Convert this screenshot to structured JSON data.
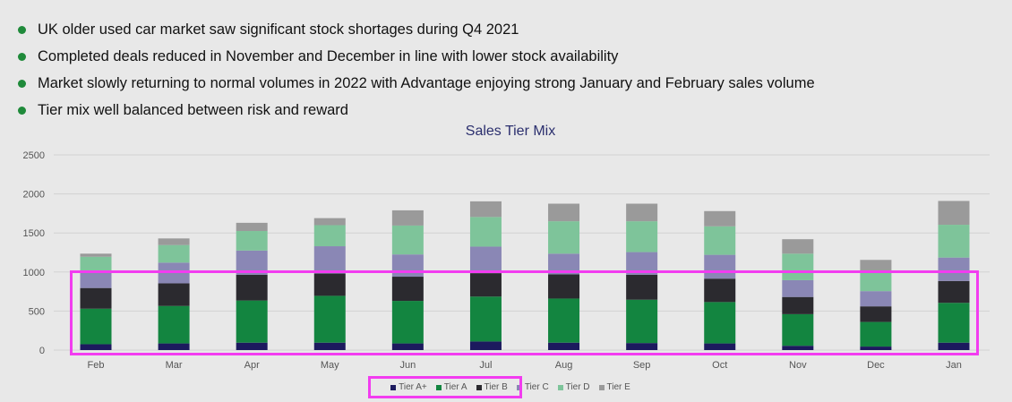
{
  "bullets": {
    "color": "#1f8a3a",
    "items": [
      "UK older used car market saw significant stock shortages during Q4 2021",
      "Completed deals reduced in November and December in line with lower stock availability",
      "Market slowly returning to normal volumes in 2022 with Advantage enjoying strong January and February sales volume",
      "Tier mix well balanced between risk and reward"
    ]
  },
  "highlight_color": "#f23cf0",
  "chart_data": {
    "type": "bar",
    "stacked": true,
    "title": "Sales Tier Mix",
    "xlabel": "",
    "ylabel": "",
    "ylim": [
      0,
      2500
    ],
    "yticks": [
      0,
      500,
      1000,
      1500,
      2000,
      2500
    ],
    "grid": true,
    "legend_position": "bottom",
    "categories": [
      "Feb",
      "Mar",
      "Apr",
      "May",
      "Jun",
      "Jul",
      "Aug",
      "Sep",
      "Oct",
      "Nov",
      "Dec",
      "Jan"
    ],
    "series": [
      {
        "name": "Tier A+",
        "color": "#1c1a5e",
        "values": [
          75,
          85,
          95,
          95,
          85,
          110,
          95,
          90,
          85,
          55,
          45,
          95
        ]
      },
      {
        "name": "Tier A",
        "color": "#138540",
        "values": [
          455,
          480,
          540,
          600,
          545,
          575,
          565,
          555,
          530,
          405,
          315,
          510
        ]
      },
      {
        "name": "Tier B",
        "color": "#2b2a2f",
        "values": [
          265,
          290,
          330,
          285,
          310,
          300,
          310,
          320,
          300,
          220,
          200,
          280
        ]
      },
      {
        "name": "Tier C",
        "color": "#8a87b5",
        "values": [
          200,
          265,
          310,
          350,
          285,
          340,
          265,
          290,
          305,
          215,
          195,
          300
        ]
      },
      {
        "name": "Tier D",
        "color": "#7ec49a",
        "values": [
          200,
          225,
          250,
          270,
          370,
          380,
          415,
          395,
          365,
          340,
          245,
          420
        ]
      },
      {
        "name": "Tier E",
        "color": "#9a9a9a",
        "values": [
          40,
          85,
          105,
          90,
          195,
          200,
          225,
          225,
          195,
          185,
          155,
          305
        ]
      }
    ]
  }
}
